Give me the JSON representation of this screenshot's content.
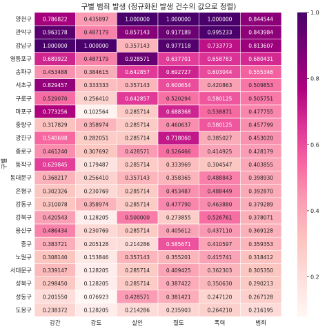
{
  "chart_data": {
    "type": "heatmap",
    "title": "구별 범죄 발생 (정규화된 발생 건수의 값으로 정렬)",
    "ylabel": "구별",
    "xlabel": "",
    "columns": [
      "강간",
      "강도",
      "살인",
      "절도",
      "폭력",
      "범죄"
    ],
    "rows": [
      "양천구",
      "관악구",
      "강남구",
      "영등포구",
      "송파구",
      "서초구",
      "구로구",
      "마포구",
      "중랑구",
      "광진구",
      "종로구",
      "동작구",
      "동대문구",
      "은평구",
      "강동구",
      "강북구",
      "용산구",
      "중구",
      "노원구",
      "서대문구",
      "성북구",
      "성동구",
      "도봉구"
    ],
    "values": [
      [
        0.786822,
        0.435897,
        1.0,
        1.0,
        1.0,
        0.844544
      ],
      [
        0.963178,
        0.487179,
        0.857143,
        0.917189,
        0.995233,
        0.843984
      ],
      [
        1.0,
        1.0,
        0.357143,
        0.977118,
        0.733773,
        0.813607
      ],
      [
        0.689922,
        0.487179,
        0.928571,
        0.637701,
        0.658783,
        0.680431
      ],
      [
        0.453488,
        0.384615,
        0.642857,
        0.692727,
        0.603044,
        0.555346
      ],
      [
        0.829457,
        0.333333,
        0.357143,
        0.600654,
        0.420863,
        0.509853
      ],
      [
        0.52907,
        0.25641,
        0.642857,
        0.520294,
        0.580125,
        0.505751
      ],
      [
        0.773256,
        0.102564,
        0.285714,
        0.688368,
        0.538871,
        0.477755
      ],
      [
        0.317829,
        0.358974,
        0.285714,
        0.460637,
        0.580125,
        0.457799
      ],
      [
        0.540698,
        0.282051,
        0.285714,
        0.71806,
        0.385027,
        0.45302
      ],
      [
        0.46124,
        0.307692,
        0.428571,
        0.526466,
        0.414925,
        0.428179
      ],
      [
        0.629845,
        0.179487,
        0.285714,
        0.333969,
        0.304547,
        0.403855
      ],
      [
        0.368217,
        0.25641,
        0.357143,
        0.358365,
        0.488843,
        0.39893
      ],
      [
        0.302326,
        0.230769,
        0.285714,
        0.453487,
        0.488449,
        0.39287
      ],
      [
        0.310078,
        0.358974,
        0.285714,
        0.47779,
        0.46388,
        0.379289
      ],
      [
        0.420543,
        0.128205,
        0.5,
        0.273855,
        0.526761,
        0.378071
      ],
      [
        0.486434,
        0.230769,
        0.285714,
        0.405612,
        0.43711,
        0.369128
      ],
      [
        0.383721,
        0.205128,
        0.214286,
        0.585671,
        0.410597,
        0.359353
      ],
      [
        0.30814,
        0.153846,
        0.357143,
        0.355201,
        0.415741,
        0.318412
      ],
      [
        0.339147,
        0.128205,
        0.285714,
        0.409425,
        0.362303,
        0.30535
      ],
      [
        0.29845,
        0.128205,
        0.285714,
        0.387422,
        0.35063,
        0.290213
      ],
      [
        0.20155,
        0.076923,
        0.428571,
        0.381421,
        0.24712,
        0.267128
      ],
      [
        0.238372,
        0.128205,
        0.214286,
        0.235903,
        0.26421,
        0.216195
      ]
    ],
    "colorbar": {
      "cmap": "RdPu",
      "range": [
        0.08,
        1.0
      ],
      "ticks": [
        0.2,
        0.4,
        0.6,
        0.8,
        1.0
      ],
      "tick_labels": [
        "0.2",
        "0.4",
        "0.6",
        "0.8",
        "1.0"
      ]
    },
    "grid_lines": true,
    "cell_labels": true
  }
}
